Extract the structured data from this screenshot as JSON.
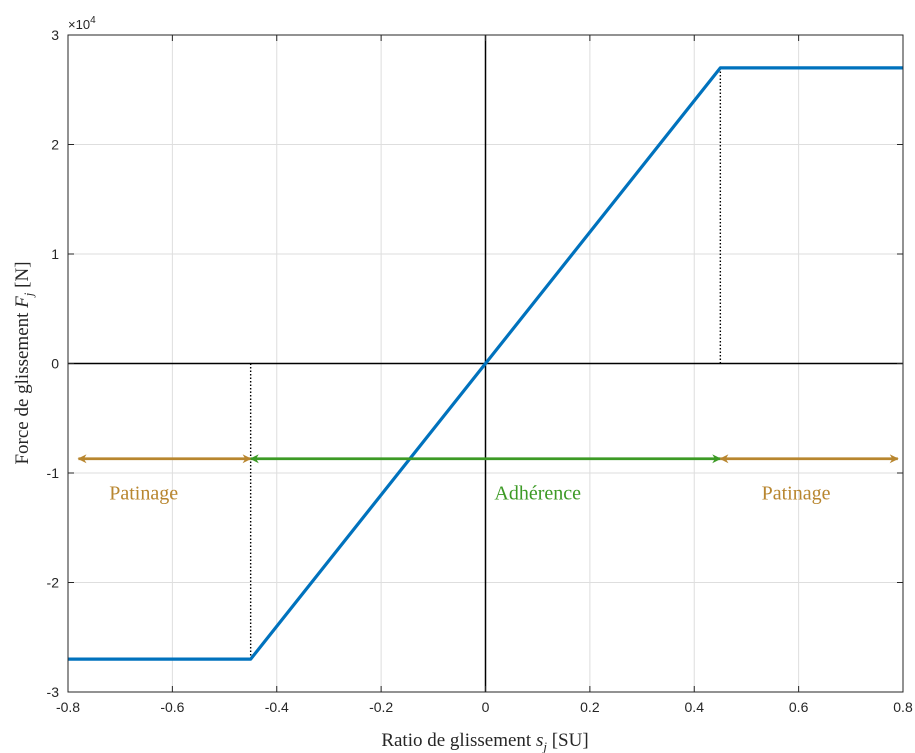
{
  "chart_data": {
    "type": "line",
    "xlabel": {
      "prefix": "Ratio de glissement ",
      "var": "s",
      "sub": "j",
      "suffix": " [SU]"
    },
    "ylabel": {
      "prefix": "Force de glissement ",
      "var": "F",
      "sub": "j",
      "suffix": " [N]"
    },
    "y_exponent": {
      "base": "×10",
      "power": "4"
    },
    "xlim": [
      -0.8,
      0.8
    ],
    "ylim": [
      -30000,
      30000
    ],
    "xticks": [
      -0.8,
      -0.6,
      -0.4,
      -0.2,
      0,
      0.2,
      0.4,
      0.6,
      0.8
    ],
    "xtick_labels": [
      "-0.8",
      "-0.6",
      "-0.4",
      "-0.2",
      "0",
      "0.2",
      "0.4",
      "0.6",
      "0.8"
    ],
    "yticks": [
      -30000,
      -20000,
      -10000,
      0,
      10000,
      20000,
      30000
    ],
    "ytick_labels": [
      "-3",
      "-2",
      "-1",
      "0",
      "1",
      "2",
      "3"
    ],
    "grid": true,
    "series": [
      {
        "color": "#0072BD",
        "x": [
          -0.8,
          -0.45,
          0.45,
          0.8
        ],
        "y": [
          -27000,
          -27000,
          27000,
          27000
        ]
      }
    ],
    "reference_lines": [
      {
        "type": "hline",
        "y": 0,
        "color": "#000000"
      },
      {
        "type": "vline",
        "x": 0,
        "color": "#000000"
      },
      {
        "type": "dotted",
        "x": -0.45,
        "y0": 0,
        "y1": -27000,
        "color": "#000000"
      },
      {
        "type": "dotted",
        "x": 0.45,
        "y0": 0,
        "y1": 27000,
        "color": "#000000"
      }
    ],
    "arrows": [
      {
        "x0": -0.78,
        "x1": -0.45,
        "y": -8700,
        "color": "#B8862F"
      },
      {
        "x0": -0.45,
        "x1": 0.45,
        "y": -8700,
        "color": "#3C9A25"
      },
      {
        "x0": 0.45,
        "x1": 0.79,
        "y": -8700,
        "color": "#B8862F"
      }
    ],
    "annotations": [
      {
        "text": "Patinage",
        "x": -0.655,
        "y": -11800,
        "color": "#B8862F"
      },
      {
        "text": "Adhérence",
        "x": 0.1,
        "y": -11800,
        "color": "#3C9A25"
      },
      {
        "text": "Patinage",
        "x": 0.595,
        "y": -11800,
        "color": "#B8862F"
      }
    ]
  }
}
